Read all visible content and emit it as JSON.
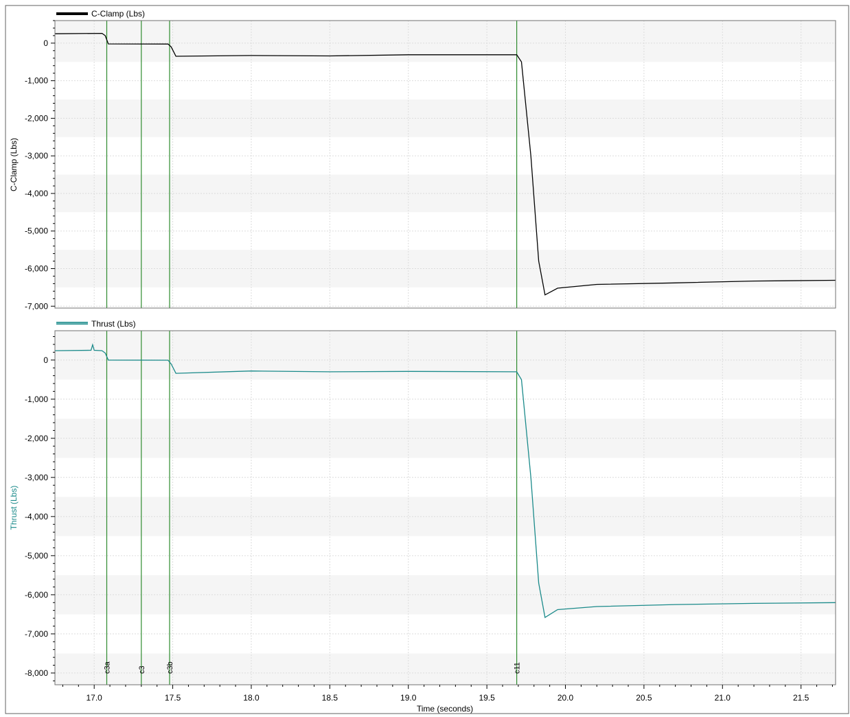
{
  "colors": {
    "series_1": "#000000",
    "series_2": "#1a8a8a",
    "marker": "#2e8b2e",
    "band": "#f5f5f5",
    "grid": "#dcdcdc"
  },
  "chart_data": {
    "type": "line",
    "xlabel": "Time  (seconds)",
    "xlim": [
      16.75,
      21.72
    ],
    "x_ticks": [
      17.0,
      17.5,
      18.0,
      18.5,
      19.0,
      19.5,
      20.0,
      20.5,
      21.0,
      21.5
    ],
    "x_tick_labels": [
      "17.0",
      "17.5",
      "18.0",
      "18.5",
      "19.0",
      "19.5",
      "20.0",
      "20.5",
      "21.0",
      "21.5"
    ],
    "markers": [
      {
        "label": "c3a",
        "x": 17.08
      },
      {
        "label": "c3",
        "x": 17.3
      },
      {
        "label": "c3b",
        "x": 17.48
      },
      {
        "label": "c11",
        "x": 19.69
      }
    ],
    "panels": [
      {
        "name": "C-Clamp  (Lbs)",
        "ylabel": "C-Clamp  (Lbs)",
        "ylim": [
          -7050,
          600
        ],
        "y_ticks": [
          0,
          -1000,
          -2000,
          -3000,
          -4000,
          -5000,
          -6000,
          -7000
        ],
        "y_tick_labels": [
          "0",
          "-1,000",
          "-2,000",
          "-3,000",
          "-4,000",
          "-5,000",
          "-6,000",
          "-7,000"
        ],
        "color": "#000000",
        "points": [
          [
            16.75,
            250
          ],
          [
            17.05,
            260
          ],
          [
            17.07,
            200
          ],
          [
            17.09,
            -20
          ],
          [
            17.47,
            -25
          ],
          [
            17.49,
            -100
          ],
          [
            17.52,
            -350
          ],
          [
            18.0,
            -330
          ],
          [
            18.5,
            -340
          ],
          [
            19.0,
            -310
          ],
          [
            19.69,
            -310
          ],
          [
            19.72,
            -500
          ],
          [
            19.78,
            -3000
          ],
          [
            19.83,
            -5800
          ],
          [
            19.87,
            -6700
          ],
          [
            19.95,
            -6520
          ],
          [
            20.2,
            -6420
          ],
          [
            20.7,
            -6380
          ],
          [
            21.2,
            -6330
          ],
          [
            21.72,
            -6310
          ]
        ]
      },
      {
        "name": "Thrust  (Lbs)",
        "ylabel": "Thrust  (Lbs)",
        "ylim": [
          -8300,
          750
        ],
        "y_ticks": [
          0,
          -1000,
          -2000,
          -3000,
          -4000,
          -5000,
          -6000,
          -7000,
          -8000
        ],
        "y_tick_labels": [
          "0",
          "-1,000",
          "-2,000",
          "-3,000",
          "-4,000",
          "-5,000",
          "-6,000",
          "-7,000",
          "-8,000"
        ],
        "color": "#1a8a8a",
        "points": [
          [
            16.75,
            240
          ],
          [
            16.98,
            250
          ],
          [
            16.99,
            390
          ],
          [
            17.0,
            250
          ],
          [
            17.05,
            240
          ],
          [
            17.07,
            180
          ],
          [
            17.09,
            0
          ],
          [
            17.47,
            -5
          ],
          [
            17.49,
            -100
          ],
          [
            17.52,
            -340
          ],
          [
            18.0,
            -280
          ],
          [
            18.5,
            -300
          ],
          [
            19.0,
            -290
          ],
          [
            19.69,
            -300
          ],
          [
            19.72,
            -500
          ],
          [
            19.78,
            -3000
          ],
          [
            19.83,
            -5700
          ],
          [
            19.87,
            -6580
          ],
          [
            19.95,
            -6380
          ],
          [
            20.2,
            -6300
          ],
          [
            20.7,
            -6250
          ],
          [
            21.2,
            -6220
          ],
          [
            21.72,
            -6200
          ]
        ]
      }
    ]
  }
}
